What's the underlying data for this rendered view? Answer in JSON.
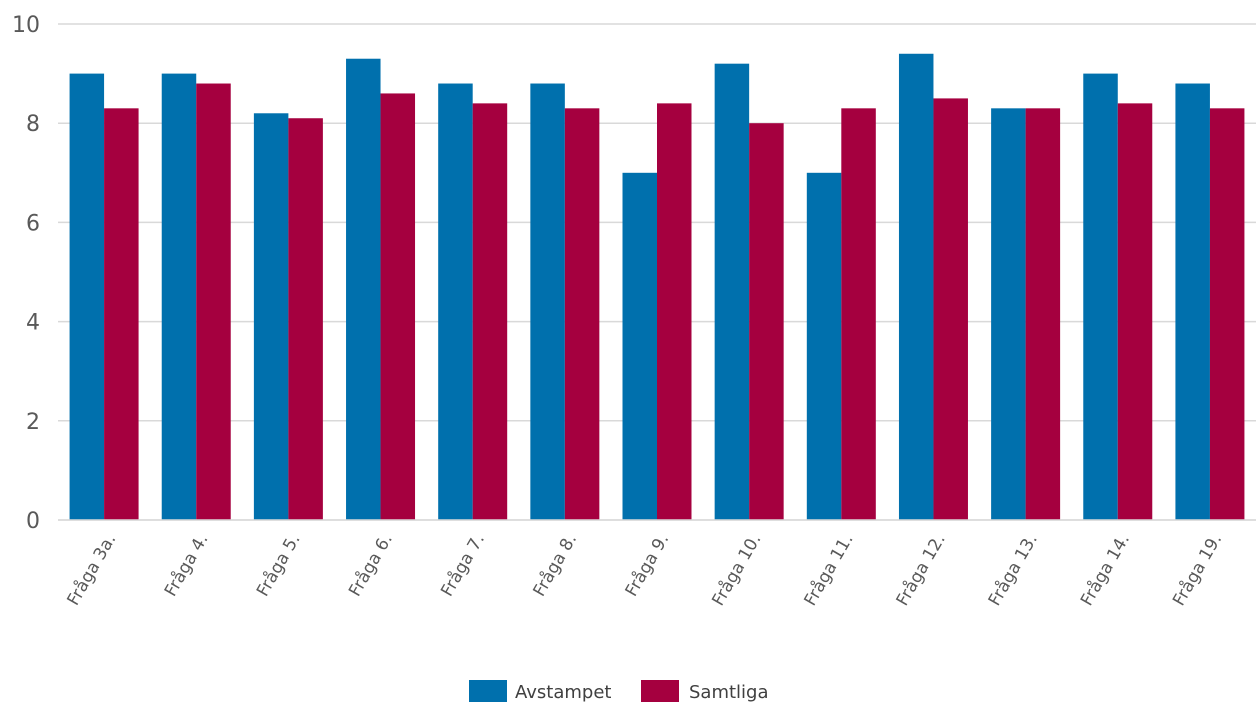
{
  "chart_data": {
    "type": "bar",
    "categories": [
      "Fråga 3a.",
      "Fråga 4.",
      "Fråga 5.",
      "Fråga 6.",
      "Fråga 7.",
      "Fråga 8.",
      "Fråga 9.",
      "Fråga 10.",
      "Fråga 11.",
      "Fråga 12.",
      "Fråga 13.",
      "Fråga 14.",
      "Fråga 19."
    ],
    "series": [
      {
        "name": "Avstampet",
        "color": "#0070ad",
        "values": [
          9.0,
          9.0,
          8.2,
          9.3,
          8.8,
          8.8,
          7.0,
          9.2,
          7.0,
          9.4,
          8.3,
          9.0,
          8.8
        ]
      },
      {
        "name": "Samtliga",
        "color": "#a5003f",
        "values": [
          8.3,
          8.8,
          8.1,
          8.6,
          8.4,
          8.3,
          8.4,
          8.0,
          8.3,
          8.5,
          8.3,
          8.4,
          8.3
        ]
      }
    ],
    "title": "",
    "xlabel": "",
    "ylabel": "",
    "ylim": [
      0,
      10
    ],
    "yticks": [
      "0",
      "2",
      "4",
      "6",
      "8",
      "10"
    ],
    "grid": true,
    "legend_position": "bottom"
  }
}
